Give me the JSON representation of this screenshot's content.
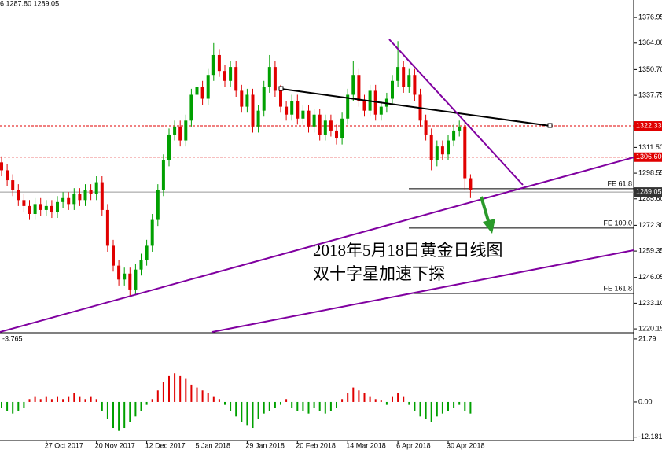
{
  "chart_data": [
    {
      "type": "candlestick",
      "header": "6 1287.80 1289.05",
      "annotations": [
        "2018年5月18日黄金日线图",
        "双十字星加速下探"
      ],
      "categories": [
        null,
        null,
        null,
        null,
        null,
        null,
        null,
        null,
        "27 Oct 2017",
        null,
        null,
        null,
        null,
        null,
        null,
        null,
        null,
        "20 Nov 2017",
        null,
        null,
        null,
        null,
        null,
        null,
        null,
        null,
        "12 Dec 2017",
        null,
        null,
        null,
        null,
        null,
        null,
        null,
        null,
        "5 Jan 2018",
        null,
        null,
        null,
        null,
        null,
        null,
        null,
        null,
        "29 Jan 2018",
        null,
        null,
        null,
        null,
        null,
        null,
        null,
        null,
        "20 Feb 2018",
        null,
        null,
        null,
        null,
        null,
        null,
        null,
        null,
        "14 Mar 2018",
        null,
        null,
        null,
        null,
        null,
        null,
        null,
        null,
        "6 Apr 2018",
        null,
        null,
        null,
        null,
        null,
        null,
        null,
        null,
        "30 Apr 2018",
        null,
        null,
        null,
        null
      ],
      "open": [
        1304,
        1300,
        1295,
        1290,
        1285,
        1282,
        1278,
        1283,
        1280,
        1282,
        1279,
        1284,
        1286,
        1283,
        1288,
        1285,
        1290,
        1288,
        1294,
        1280,
        1262,
        1252,
        1245,
        1248,
        1240,
        1250,
        1255,
        1262,
        1275,
        1290,
        1305,
        1318,
        1322,
        1315,
        1325,
        1338,
        1342,
        1336,
        1348,
        1358,
        1350,
        1345,
        1352,
        1340,
        1332,
        1338,
        1322,
        1330,
        1342,
        1352,
        1340,
        1332,
        1328,
        1335,
        1326,
        1330,
        1322,
        1328,
        1318,
        1325,
        1320,
        1316,
        1326,
        1338,
        1348,
        1335,
        1330,
        1340,
        1328,
        1332,
        1336,
        1345,
        1352,
        1342,
        1348,
        1338,
        1325,
        1318,
        1305,
        1312,
        1308,
        1315,
        1320,
        1322,
        1296
      ],
      "high": [
        1307,
        1303,
        1298,
        1293,
        1288,
        1285,
        1286,
        1286,
        1285,
        1285,
        1287,
        1289,
        1289,
        1291,
        1291,
        1293,
        1293,
        1297,
        1297,
        1283,
        1265,
        1255,
        1251,
        1251,
        1253,
        1258,
        1265,
        1278,
        1293,
        1308,
        1321,
        1325,
        1325,
        1328,
        1341,
        1345,
        1345,
        1351,
        1364,
        1361,
        1353,
        1355,
        1355,
        1343,
        1341,
        1341,
        1333,
        1345,
        1358,
        1355,
        1343,
        1335,
        1338,
        1338,
        1333,
        1333,
        1331,
        1331,
        1328,
        1328,
        1323,
        1329,
        1341,
        1355,
        1351,
        1338,
        1343,
        1343,
        1335,
        1339,
        1348,
        1365,
        1355,
        1351,
        1351,
        1341,
        1328,
        1321,
        1315,
        1315,
        1318,
        1323,
        1325,
        1325,
        1298
      ],
      "low": [
        1297,
        1292,
        1287,
        1282,
        1279,
        1275,
        1275,
        1277,
        1277,
        1276,
        1276,
        1281,
        1280,
        1280,
        1282,
        1282,
        1285,
        1285,
        1277,
        1259,
        1249,
        1242,
        1242,
        1236,
        1237,
        1247,
        1252,
        1259,
        1272,
        1287,
        1302,
        1315,
        1312,
        1312,
        1322,
        1335,
        1333,
        1333,
        1345,
        1347,
        1342,
        1342,
        1337,
        1329,
        1329,
        1319,
        1319,
        1327,
        1339,
        1337,
        1329,
        1325,
        1325,
        1323,
        1323,
        1319,
        1319,
        1315,
        1315,
        1317,
        1313,
        1313,
        1323,
        1335,
        1332,
        1327,
        1327,
        1325,
        1325,
        1329,
        1333,
        1342,
        1339,
        1339,
        1335,
        1322,
        1315,
        1300,
        1302,
        1305,
        1305,
        1312,
        1317,
        1290,
        1286
      ],
      "close": [
        1300,
        1295,
        1290,
        1285,
        1282,
        1278,
        1283,
        1280,
        1282,
        1279,
        1284,
        1286,
        1283,
        1288,
        1285,
        1290,
        1288,
        1294,
        1280,
        1262,
        1252,
        1245,
        1248,
        1240,
        1250,
        1255,
        1262,
        1275,
        1290,
        1305,
        1318,
        1322,
        1315,
        1325,
        1338,
        1342,
        1336,
        1348,
        1358,
        1350,
        1345,
        1352,
        1340,
        1332,
        1338,
        1322,
        1330,
        1342,
        1352,
        1340,
        1332,
        1328,
        1335,
        1326,
        1330,
        1322,
        1328,
        1318,
        1325,
        1320,
        1316,
        1326,
        1338,
        1348,
        1335,
        1330,
        1340,
        1328,
        1332,
        1336,
        1345,
        1352,
        1342,
        1348,
        1338,
        1325,
        1318,
        1305,
        1312,
        1308,
        1315,
        1320,
        1322,
        1296,
        1290
      ],
      "up_color": "#00a000",
      "down_color": "#e00000",
      "ylim": [
        1218.6,
        1385.7
      ],
      "yticks": [
        1376.95,
        {
          "value": 1364,
          "label": "1364.00"
        },
        {
          "value": 1350.7,
          "label": "1350.70"
        },
        1337.75,
        {
          "value": 1311.5,
          "label": "1311.50"
        },
        1298.55,
        {
          "value": 1285.6,
          "label": "1285.60"
        },
        {
          "value": 1272.3,
          "label": "1272.30"
        },
        1259.35,
        1246.05,
        {
          "value": 1233.1,
          "label": "1233.10"
        },
        1220.15
      ],
      "levels": [
        {
          "value": 1322.33,
          "label": "1322.33",
          "color": "#e00000"
        },
        {
          "value": 1306.6,
          "label": "1306.60",
          "color": "#e00000"
        },
        {
          "value": 1289.05,
          "label": "1289.05",
          "color": "#999999"
        }
      ],
      "fib": [
        {
          "label": "FE 61.8",
          "value": 1290.7
        },
        {
          "label": "FE 100.0",
          "value": 1270.9
        },
        {
          "label": "FE 161.8",
          "value": 1238.0
        }
      ]
    },
    {
      "type": "bar",
      "label": "-3.765",
      "values": [
        -2,
        -3,
        -4,
        -3,
        -2,
        1,
        2,
        1,
        2,
        1,
        2,
        1,
        2,
        3,
        2,
        1,
        2,
        1,
        -3,
        -6,
        -9,
        -10,
        -9,
        -7,
        -5,
        -3,
        -1,
        1,
        4,
        7,
        9,
        10,
        9,
        8,
        6,
        5,
        4,
        3,
        2,
        1,
        -1,
        -3,
        -5,
        -7,
        -8,
        -9,
        -6,
        -4,
        -3,
        -2,
        -1,
        1,
        -2,
        -3,
        -3,
        -4,
        -2,
        -3,
        -4,
        -3,
        -2,
        1,
        3,
        5,
        4,
        3,
        2,
        1,
        0.5,
        -1,
        2,
        3,
        2,
        -1,
        -3,
        -5,
        -6,
        -7,
        -5,
        -4,
        -3,
        -2,
        -1,
        -3,
        -4
      ],
      "pos_color": "#e00000",
      "neg_color": "#00a000",
      "ylim": [
        -13.35,
        23.4
      ],
      "yticks": [
        21.79,
        {
          "value": 0,
          "label": "0.00"
        },
        -12.181
      ]
    }
  ]
}
